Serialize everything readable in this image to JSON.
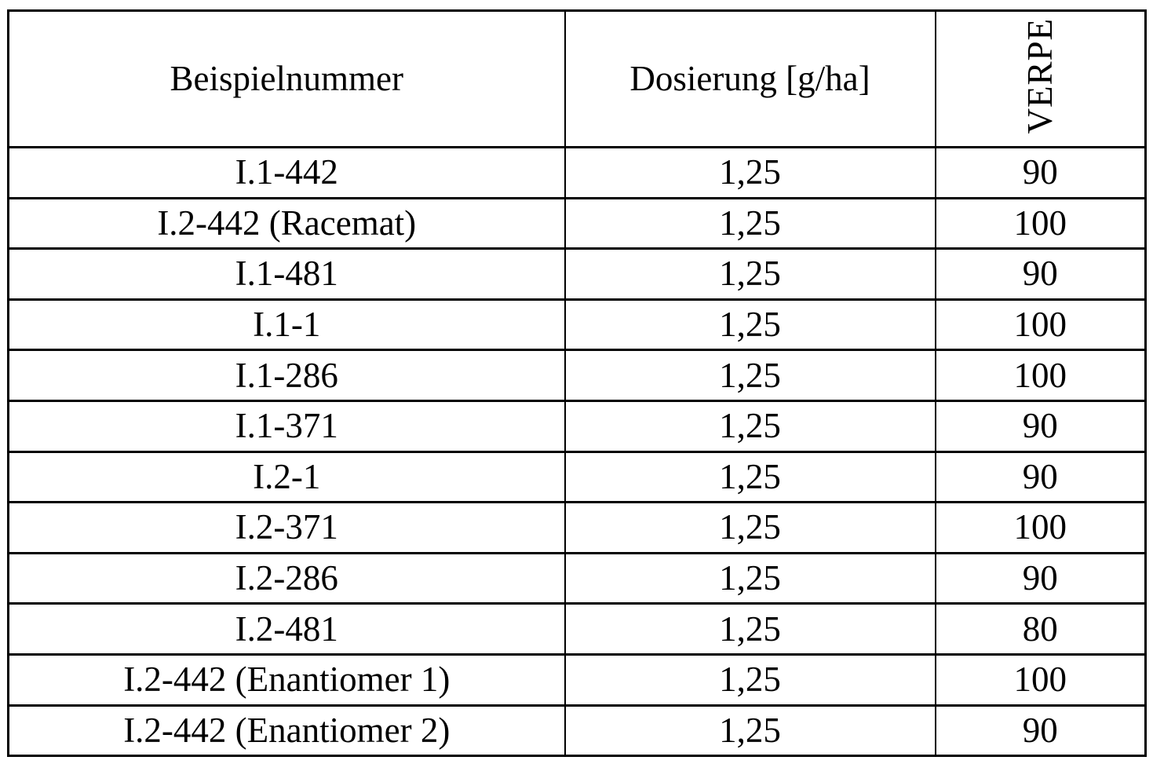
{
  "colors": {
    "border": "#000000",
    "text": "#000000",
    "background": "#ffffff"
  },
  "table": {
    "columns": [
      {
        "label": "Beispielnummer"
      },
      {
        "label": "Dosierung [g/ha]"
      },
      {
        "label": "VERPE",
        "orientation": "vertical-bottom-to-top"
      }
    ],
    "rows": [
      {
        "beispielnummer": "I.1-442",
        "dosierung": "1,25",
        "verpe": "90"
      },
      {
        "beispielnummer": "I.2-442 (Racemat)",
        "dosierung": "1,25",
        "verpe": "100"
      },
      {
        "beispielnummer": "I.1-481",
        "dosierung": "1,25",
        "verpe": "90"
      },
      {
        "beispielnummer": "I.1-1",
        "dosierung": "1,25",
        "verpe": "100"
      },
      {
        "beispielnummer": "I.1-286",
        "dosierung": "1,25",
        "verpe": "100"
      },
      {
        "beispielnummer": "I.1-371",
        "dosierung": "1,25",
        "verpe": "90"
      },
      {
        "beispielnummer": "I.2-1",
        "dosierung": "1,25",
        "verpe": "90"
      },
      {
        "beispielnummer": "I.2-371",
        "dosierung": "1,25",
        "verpe": "100"
      },
      {
        "beispielnummer": "I.2-286",
        "dosierung": "1,25",
        "verpe": "90"
      },
      {
        "beispielnummer": "I.2-481",
        "dosierung": "1,25",
        "verpe": "80"
      },
      {
        "beispielnummer": "I.2-442 (Enantiomer 1)",
        "dosierung": "1,25",
        "verpe": "100"
      },
      {
        "beispielnummer": "I.2-442 (Enantiomer 2)",
        "dosierung": "1,25",
        "verpe": "90"
      }
    ]
  }
}
